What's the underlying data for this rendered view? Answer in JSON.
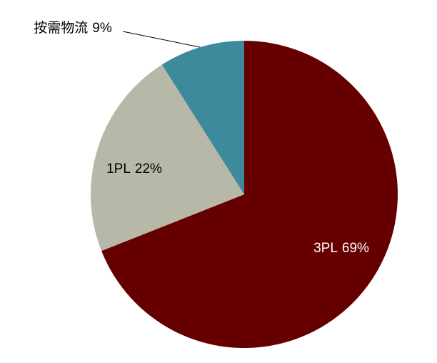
{
  "chart_data": {
    "type": "pie",
    "categories": [
      "3PL",
      "1PL",
      "按需物流"
    ],
    "values": [
      69,
      22,
      9
    ],
    "value_labels": [
      "69%",
      "22%",
      "9%"
    ],
    "colors": [
      "#660000",
      "#b8b8a8",
      "#3d8a9c"
    ]
  }
}
